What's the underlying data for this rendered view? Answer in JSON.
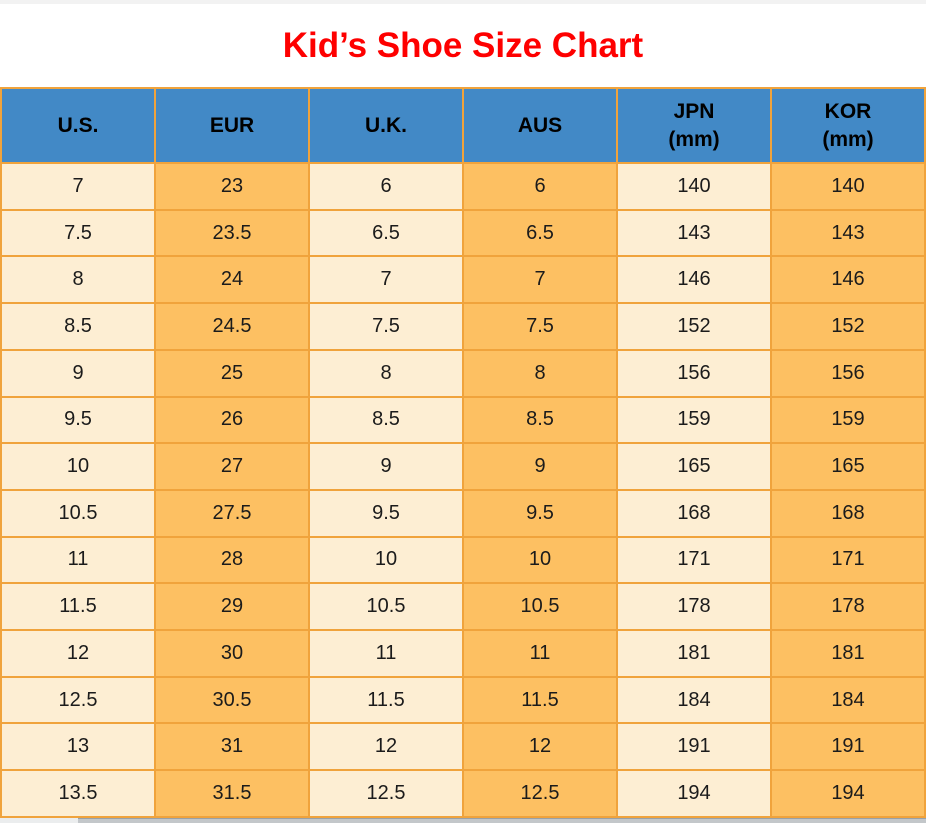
{
  "page": {
    "title": "Kid’s Shoe Size Chart"
  },
  "colors": {
    "title_red": "#fe0000",
    "header_blue": "#4289c6",
    "cell_cream": "#fdeed3",
    "cell_orange": "#fdc062",
    "border_orange": "#f0a33c",
    "header_text": "#000000",
    "body_text": "#1b1b1b"
  },
  "table": {
    "headers": [
      {
        "label": "U.S.",
        "sub": ""
      },
      {
        "label": "EUR",
        "sub": ""
      },
      {
        "label": "U.K.",
        "sub": ""
      },
      {
        "label": "AUS",
        "sub": ""
      },
      {
        "label": "JPN",
        "sub": "(mm)"
      },
      {
        "label": "KOR",
        "sub": "(mm)"
      }
    ],
    "rows": [
      [
        "7",
        "23",
        "6",
        "6",
        "140",
        "140"
      ],
      [
        "7.5",
        "23.5",
        "6.5",
        "6.5",
        "143",
        "143"
      ],
      [
        "8",
        "24",
        "7",
        "7",
        "146",
        "146"
      ],
      [
        "8.5",
        "24.5",
        "7.5",
        "7.5",
        "152",
        "152"
      ],
      [
        "9",
        "25",
        "8",
        "8",
        "156",
        "156"
      ],
      [
        "9.5",
        "26",
        "8.5",
        "8.5",
        "159",
        "159"
      ],
      [
        "10",
        "27",
        "9",
        "9",
        "165",
        "165"
      ],
      [
        "10.5",
        "27.5",
        "9.5",
        "9.5",
        "168",
        "168"
      ],
      [
        "11",
        "28",
        "10",
        "10",
        "171",
        "171"
      ],
      [
        "11.5",
        "29",
        "10.5",
        "10.5",
        "178",
        "178"
      ],
      [
        "12",
        "30",
        "11",
        "11",
        "181",
        "181"
      ],
      [
        "12.5",
        "30.5",
        "11.5",
        "11.5",
        "184",
        "184"
      ],
      [
        "13",
        "31",
        "12",
        "12",
        "191",
        "191"
      ],
      [
        "13.5",
        "31.5",
        "12.5",
        "12.5",
        "194",
        "194"
      ]
    ]
  },
  "chart_data": {
    "type": "table",
    "title": "Kid’s Shoe Size Chart",
    "columns": [
      "U.S.",
      "EUR",
      "U.K.",
      "AUS",
      "JPN (mm)",
      "KOR (mm)"
    ],
    "us": [
      7,
      7.5,
      8,
      8.5,
      9,
      9.5,
      10,
      10.5,
      11,
      11.5,
      12,
      12.5,
      13,
      13.5
    ],
    "eur": [
      23,
      23.5,
      24,
      24.5,
      25,
      26,
      27,
      27.5,
      28,
      29,
      30,
      30.5,
      31,
      31.5
    ],
    "uk": [
      6,
      6.5,
      7,
      7.5,
      8,
      8.5,
      9,
      9.5,
      10,
      10.5,
      11,
      11.5,
      12,
      12.5
    ],
    "aus": [
      6,
      6.5,
      7,
      7.5,
      8,
      8.5,
      9,
      9.5,
      10,
      10.5,
      11,
      11.5,
      12,
      12.5
    ],
    "jpn_mm": [
      140,
      143,
      146,
      152,
      156,
      159,
      165,
      168,
      171,
      178,
      181,
      184,
      191,
      194
    ],
    "kor_mm": [
      140,
      143,
      146,
      152,
      156,
      159,
      165,
      168,
      171,
      178,
      181,
      184,
      191,
      194
    ]
  }
}
